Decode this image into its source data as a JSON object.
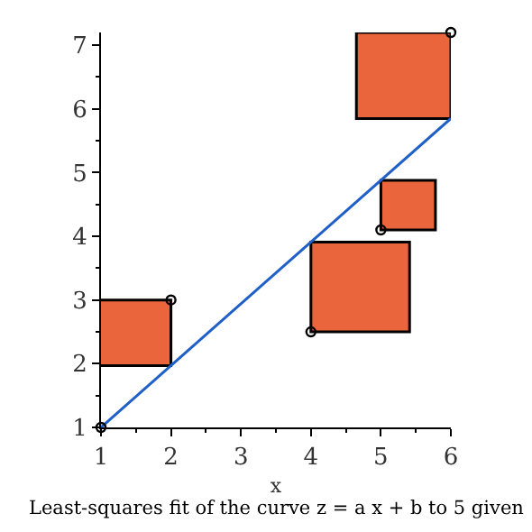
{
  "chart_data": {
    "type": "scatter",
    "title": "Least-squares fit of the curve z = a x + b to 5 given",
    "xlabel": "x",
    "xlim": [
      1,
      6
    ],
    "ylim": [
      1,
      7.2
    ],
    "xticks": [
      1,
      2,
      3,
      4,
      5,
      6
    ],
    "yticks": [
      1,
      2,
      3,
      4,
      5,
      6,
      7
    ],
    "legend": false,
    "series": [
      {
        "type": "bar",
        "color": "#ea643c",
        "x": [
          1.485,
          4.705,
          5.325,
          5.39
        ],
        "base": [
          1.97,
          2.5,
          5.85,
          4.1
        ],
        "values": [
          1.03,
          1.41,
          1.35,
          0.78
        ]
      },
      {
        "type": "line",
        "color": "#1f5fc8",
        "x": [
          1,
          6
        ],
        "values": [
          1,
          5.85
        ],
        "marker": "none",
        "line_style": "solid"
      },
      {
        "color": "#000000",
        "x": [
          1,
          2,
          4,
          5,
          6
        ],
        "values": [
          1,
          3,
          2.5,
          4.1,
          7.2
        ],
        "marker": "circle"
      }
    ]
  }
}
